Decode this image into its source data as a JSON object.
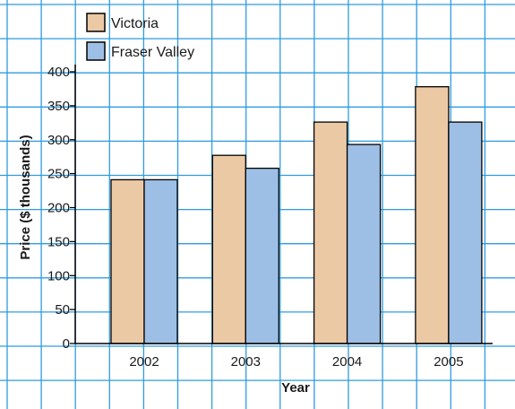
{
  "chart_data": {
    "type": "bar",
    "categories": [
      "2002",
      "2003",
      "2004",
      "2005"
    ],
    "series": [
      {
        "name": "Victoria",
        "values": [
          241,
          277,
          326,
          378
        ],
        "color": "#ecc9a5"
      },
      {
        "name": "Fraser Valley",
        "values": [
          241,
          258,
          293,
          326
        ],
        "color": "#9ebfe5"
      }
    ],
    "xlabel": "Year",
    "ylabel": "Price ($ thousands)",
    "ylim": [
      0,
      400
    ],
    "yticks": [
      0,
      50,
      100,
      150,
      200,
      250,
      300,
      350,
      400
    ],
    "grid": true,
    "grid_color": "#2f9be0",
    "legend_position": "top-left"
  }
}
